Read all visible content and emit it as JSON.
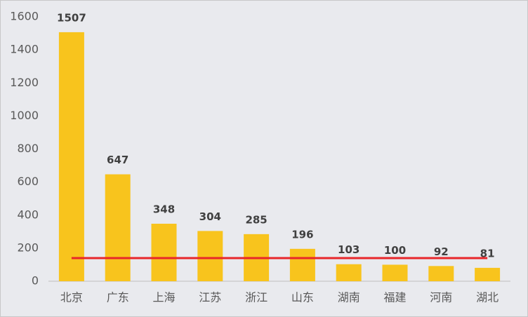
{
  "chart_data": {
    "type": "bar",
    "categories": [
      "北京",
      "广东",
      "上海",
      "江苏",
      "浙江",
      "山东",
      "湖南",
      "福建",
      "河南",
      "湖北"
    ],
    "values": [
      1507,
      647,
      348,
      304,
      285,
      196,
      103,
      100,
      92,
      81
    ],
    "color": "#f8c41d",
    "ylim": [
      0,
      1600
    ],
    "yticks": [
      0,
      200,
      400,
      600,
      800,
      1000,
      1200,
      1400,
      1600
    ],
    "grid": false,
    "reference_line": {
      "value": 140,
      "color": "#e8262a"
    }
  }
}
